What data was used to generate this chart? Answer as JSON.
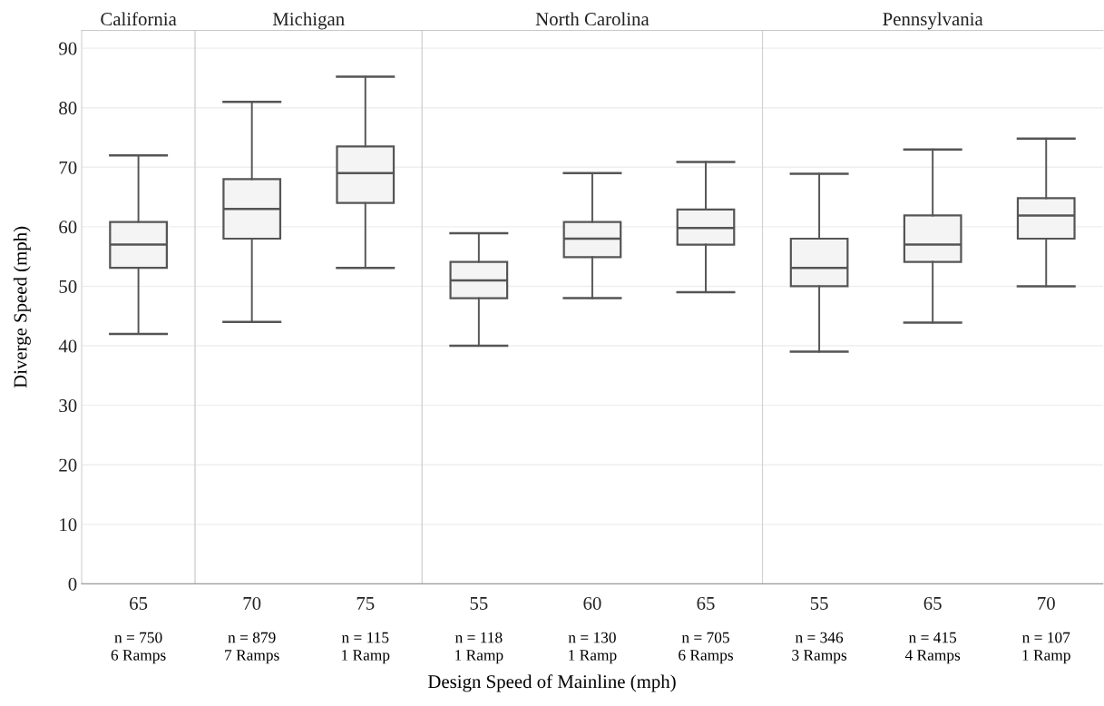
{
  "chart_data": [
    {
      "type": "box",
      "title": "California",
      "ylabel": "Diverge Speed (mph)",
      "categories": [
        "65"
      ],
      "ylim": [
        0,
        93
      ],
      "yticks": [
        0,
        10,
        20,
        30,
        40,
        50,
        60,
        70,
        80,
        90
      ],
      "grid": "y",
      "color": "#f4f4f4",
      "boxes": [
        {
          "low": 42,
          "q1": 53.1,
          "median": 57,
          "q3": 60.8,
          "high": 72
        }
      ],
      "annotations": [
        "n = 750\n6 Ramps"
      ]
    },
    {
      "type": "box",
      "title": "Michigan",
      "categories": [
        "70",
        "75"
      ],
      "ylim": [
        0,
        93
      ],
      "yticks": [
        0,
        10,
        20,
        30,
        40,
        50,
        60,
        70,
        80,
        90
      ],
      "grid": "y",
      "tick_labels": "x",
      "color": "#f4f4f4",
      "boxes": [
        {
          "low": 44,
          "q1": 58,
          "median": 63,
          "q3": 68,
          "high": 81
        },
        {
          "low": 53.1,
          "q1": 64,
          "median": 69,
          "q3": 73.5,
          "high": 85.2
        }
      ],
      "annotations": [
        "n = 879\n7 Ramps",
        "n = 115\n1 Ramp"
      ]
    },
    {
      "type": "box",
      "title": "North Carolina",
      "xlabel": "Design Speed of Mainline (mph)",
      "categories": [
        "55",
        "60",
        "65"
      ],
      "ylim": [
        0,
        93
      ],
      "yticks": [
        0,
        10,
        20,
        30,
        40,
        50,
        60,
        70,
        80,
        90
      ],
      "grid": "y",
      "tick_labels": "x",
      "color": "#f4f4f4",
      "boxes": [
        {
          "low": 40,
          "q1": 48,
          "median": 51,
          "q3": 54.1,
          "high": 58.9
        },
        {
          "low": 48,
          "q1": 54.9,
          "median": 58,
          "q3": 60.8,
          "high": 69
        },
        {
          "low": 49,
          "q1": 57,
          "median": 59.8,
          "q3": 62.9,
          "high": 70.9
        }
      ],
      "annotations": [
        "n = 118\n1 Ramp",
        "n = 130\n1 Ramp",
        "n = 705\n6 Ramps"
      ]
    },
    {
      "type": "box",
      "title": "Pennsylvania",
      "categories": [
        "55",
        "65",
        "70"
      ],
      "ylim": [
        0,
        93
      ],
      "yticks": [
        0,
        10,
        20,
        30,
        40,
        50,
        60,
        70,
        80,
        90
      ],
      "grid": "y",
      "tick_labels": "x",
      "color": "#f4f4f4",
      "boxes": [
        {
          "low": 39,
          "q1": 50,
          "median": 53.1,
          "q3": 58,
          "high": 68.9
        },
        {
          "low": 43.9,
          "q1": 54.1,
          "median": 57,
          "q3": 61.9,
          "high": 73
        },
        {
          "low": 50,
          "q1": 58,
          "median": 61.9,
          "q3": 64.8,
          "high": 74.8
        }
      ],
      "annotations": [
        "n = 346\n3 Ramps",
        "n = 415\n4 Ramps",
        "n = 107\n1 Ramp"
      ]
    }
  ]
}
